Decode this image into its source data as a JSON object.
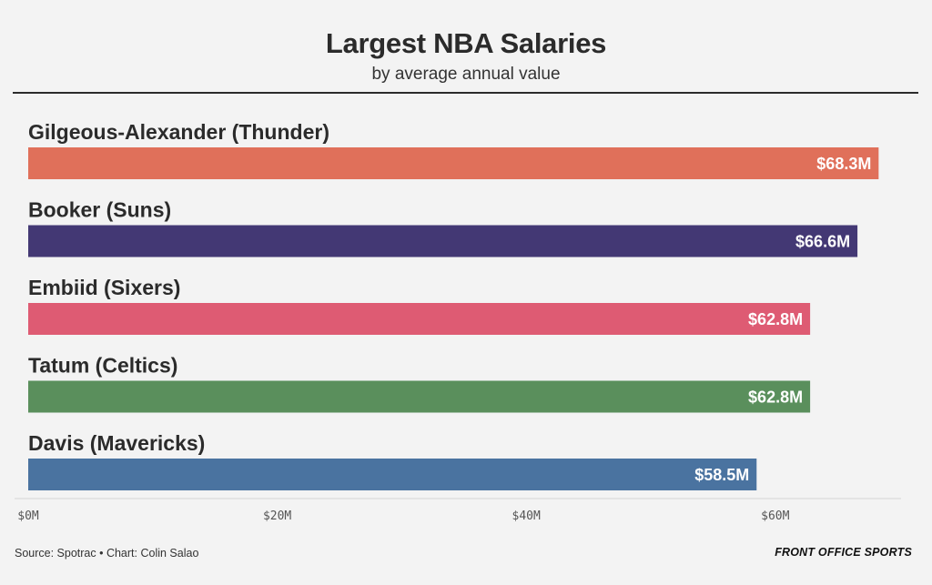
{
  "chart_data": {
    "type": "bar",
    "orientation": "horizontal",
    "title": "Largest NBA Salaries",
    "subtitle": "by average annual value",
    "categories": [
      "Gilgeous-Alexander (Thunder)",
      "Booker (Suns)",
      "Embiid (Sixers)",
      "Tatum (Celtics)",
      "Davis (Mavericks)"
    ],
    "values": [
      68.3,
      66.6,
      62.8,
      62.8,
      58.5
    ],
    "value_labels": [
      "$68.3M",
      "$66.6M",
      "$62.8M",
      "$62.8M",
      "$58.5M"
    ],
    "colors": [
      "#e0705a",
      "#433874",
      "#de5b73",
      "#5a8f5c",
      "#4a73a0"
    ],
    "xlim": [
      0,
      70
    ],
    "xticks": [
      0,
      20,
      40,
      60
    ],
    "xtick_labels": [
      "$0M",
      "$20M",
      "$40M",
      "$60M"
    ],
    "grid": false,
    "legend": "none"
  },
  "footer": {
    "source": "Source: Spotrac • Chart: Colin Salao",
    "brand": "FRONT OFFICE SPORTS"
  }
}
